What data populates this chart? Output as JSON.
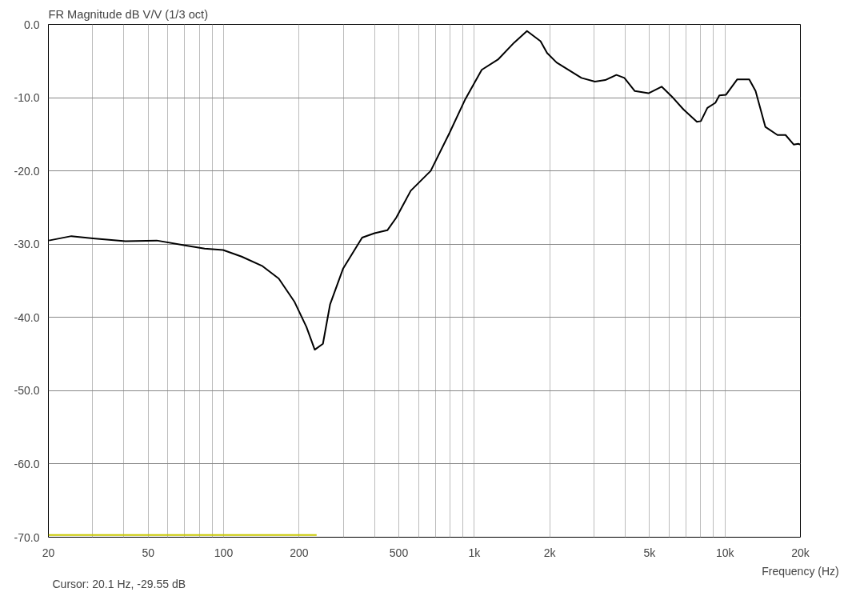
{
  "chart_data": {
    "type": "line",
    "title": "FR Magnitude dB V/V (1/3 oct)",
    "xlabel": "Frequency (Hz)",
    "annotations": [
      "Cursor: 20.1 Hz, -29.55 dB"
    ],
    "log": "x",
    "grid": true,
    "marker": "none",
    "line_style": "solid",
    "xlim": [
      20,
      20000
    ],
    "ylim": [
      -70,
      0
    ],
    "xticks": [
      20,
      {
        "value": 30,
        "label": null
      },
      {
        "value": 40,
        "label": null
      },
      50,
      {
        "value": 60,
        "label": null
      },
      {
        "value": 70,
        "label": null
      },
      {
        "value": 80,
        "label": null
      },
      {
        "value": 90,
        "label": null
      },
      100,
      200,
      {
        "value": 300,
        "label": null
      },
      {
        "value": 400,
        "label": null
      },
      500,
      {
        "value": 600,
        "label": null
      },
      {
        "value": 700,
        "label": null
      },
      {
        "value": 800,
        "label": null
      },
      {
        "value": 900,
        "label": null
      },
      {
        "value": 1000,
        "label": "1k"
      },
      {
        "value": 2000,
        "label": "2k"
      },
      {
        "value": 3000,
        "label": null
      },
      {
        "value": 4000,
        "label": null
      },
      {
        "value": 5000,
        "label": "5k"
      },
      {
        "value": 6000,
        "label": null
      },
      {
        "value": 7000,
        "label": null
      },
      {
        "value": 8000,
        "label": null
      },
      {
        "value": 9000,
        "label": null
      },
      {
        "value": 10000,
        "label": "10k"
      },
      {
        "value": 20000,
        "label": "20k"
      }
    ],
    "yticks": [
      {
        "value": -70,
        "label": "-70.0"
      },
      {
        "value": -60,
        "label": "-60.0"
      },
      {
        "value": -50,
        "label": "-50.0"
      },
      {
        "value": -40,
        "label": "-40.0"
      },
      {
        "value": -30,
        "label": "-30.0"
      },
      {
        "value": -20,
        "label": "-20.0"
      },
      {
        "value": -10,
        "label": "-10.0"
      },
      {
        "value": 0,
        "label": "0.0"
      }
    ],
    "series": [
      {
        "color": "#000000",
        "x": [
          20.1,
          24.7,
          30.1,
          40.6,
          54.1,
          71,
          84,
          99.5,
          118,
          143,
          166,
          192,
          214,
          231,
          249,
          266,
          300,
          357,
          400,
          450,
          488,
          558,
          670,
          797,
          921,
          1071,
          1243,
          1441,
          1623,
          1838,
          1952,
          2130,
          2676,
          3029,
          3331,
          3690,
          3970,
          4370,
          4955,
          5590,
          6200,
          6830,
          7730,
          8020,
          8510,
          9160,
          9500,
          10100,
          11200,
          12500,
          13250,
          14500,
          16200,
          17450,
          18800,
          19600,
          20000
        ],
        "values": [
          -29.5,
          -28.9,
          -29.2,
          -29.6,
          -29.5,
          -30.2,
          -30.6,
          -30.8,
          -31.7,
          -33.0,
          -34.7,
          -37.9,
          -41.3,
          -44.4,
          -43.6,
          -38.2,
          -33.3,
          -29.1,
          -28.5,
          -28.1,
          -26.4,
          -22.7,
          -20.0,
          -14.8,
          -10.2,
          -6.2,
          -4.8,
          -2.5,
          -0.9,
          -2.3,
          -3.9,
          -5.2,
          -7.3,
          -7.8,
          -7.6,
          -6.9,
          -7.3,
          -9.1,
          -9.4,
          -8.5,
          -10.0,
          -11.6,
          -13.3,
          -13.2,
          -11.4,
          -10.7,
          -9.7,
          -9.6,
          -7.5,
          -7.5,
          -9.1,
          -14.0,
          -15.1,
          -15.1,
          -16.4,
          -16.3,
          -16.4
        ]
      },
      {
        "color": "#c8c800",
        "x": [
          20,
          235
        ],
        "values": [
          -69.7,
          -69.7
        ]
      }
    ]
  }
}
